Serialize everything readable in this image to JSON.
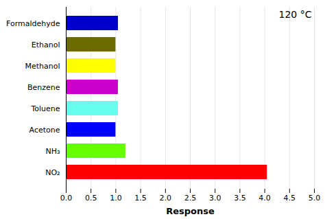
{
  "chart_data": {
    "type": "bar",
    "orientation": "horizontal",
    "title": "120 °C",
    "xlabel": "Response",
    "categories": [
      "Formaldehyde",
      "Ethanol",
      "Methanol",
      "Benzene",
      "Toluene",
      "Acetone",
      "NH₃",
      "NO₂"
    ],
    "values": [
      1.05,
      1.0,
      1.0,
      1.05,
      1.05,
      1.0,
      1.2,
      4.05
    ],
    "colors": [
      "#0000CC",
      "#6B6B00",
      "#FFFF00",
      "#CC00CC",
      "#66FFEE",
      "#0000FF",
      "#66FF00",
      "#FF0000"
    ],
    "xlim": [
      0.0,
      5.0
    ],
    "xticks": [
      {
        "value": 0.0,
        "label": "0.0"
      },
      0.5,
      {
        "value": 1.0,
        "label": "1.0"
      },
      1.5,
      {
        "value": 2.0,
        "label": "2.0"
      },
      2.5,
      {
        "value": 3.0,
        "label": "3.0"
      },
      3.5,
      {
        "value": 4.0,
        "label": "4.0"
      },
      4.5,
      {
        "value": 5.0,
        "label": "5.0"
      }
    ],
    "grid": true
  }
}
